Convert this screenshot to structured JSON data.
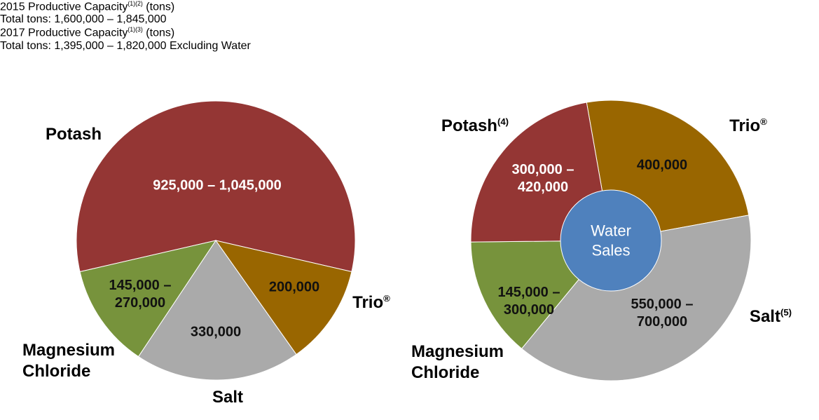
{
  "chart_data": [
    {
      "type": "pie",
      "title": "2015 Productive Capacity",
      "title_superscript": "(1)(2)",
      "title_unit": "(tons)",
      "subtitle": "Total tons: 1,600,000 – 1,845,000",
      "categories": [
        "Potash",
        "Trio",
        "Salt",
        "Magnesium Chloride"
      ],
      "category_superscripts": [
        null,
        "®",
        null,
        null
      ],
      "values": [
        [
          925000,
          1045000
        ],
        200000,
        330000,
        [
          145000,
          270000
        ]
      ],
      "value_labels": [
        "925,000 – 1,045,000",
        "200,000",
        "330,000",
        "145,000 – 270,000"
      ],
      "colors": [
        "#943634",
        "#996600",
        "#aaaaaa",
        "#77933c"
      ]
    },
    {
      "type": "pie",
      "title": "2017 Productive Capacity",
      "title_superscript": "(1)(3)",
      "title_unit": "(tons)",
      "subtitle": "Total tons: 1,395,000 – 1,820,000 Excluding Water",
      "categories": [
        "Trio",
        "Salt",
        "Magnesium Chloride",
        "Potash"
      ],
      "category_superscripts": [
        "®",
        "(5)",
        null,
        "(4)"
      ],
      "values": [
        400000,
        [
          550000,
          700000
        ],
        [
          145000,
          300000
        ],
        [
          300000,
          420000
        ]
      ],
      "value_labels": [
        "400,000",
        "550,000 – 700,000",
        "145,000 – 300,000",
        "300,000 – 420,000"
      ],
      "colors": [
        "#996600",
        "#aaaaaa",
        "#77933c",
        "#943634"
      ],
      "center_label": "Water Sales",
      "center_color": "#4f81bd"
    }
  ]
}
